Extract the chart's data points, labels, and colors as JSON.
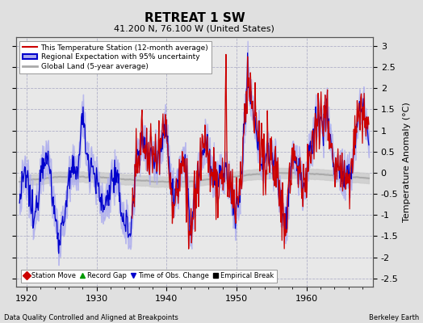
{
  "title": "RETREAT 1 SW",
  "subtitle": "41.200 N, 76.100 W (United States)",
  "ylabel": "Temperature Anomaly (°C)",
  "xlim": [
    1918.5,
    1969.5
  ],
  "ylim": [
    -2.7,
    3.2
  ],
  "yticks": [
    -2.5,
    -2,
    -1.5,
    -1,
    -0.5,
    0,
    0.5,
    1,
    1.5,
    2,
    2.5,
    3
  ],
  "xticks": [
    1920,
    1930,
    1940,
    1950,
    1960
  ],
  "background_color": "#e0e0e0",
  "plot_background": "#e8e8e8",
  "grid_color": "#b0b0c8",
  "station_line_color": "#cc0000",
  "regional_line_color": "#0000cc",
  "regional_fill_color": "#aaaaee",
  "global_line_color": "#aaaaaa",
  "global_fill_color": "#cccccc",
  "footer_left": "Data Quality Controlled and Aligned at Breakpoints",
  "footer_right": "Berkeley Earth",
  "legend_labels": [
    "This Temperature Station (12-month average)",
    "Regional Expectation with 95% uncertainty",
    "Global Land (5-year average)"
  ],
  "marker_labels": [
    "Station Move",
    "Record Gap",
    "Time of Obs. Change",
    "Empirical Break"
  ],
  "marker_colors": [
    "#cc0000",
    "#009900",
    "#0000cc",
    "#000000"
  ],
  "marker_types": [
    "D",
    "^",
    "v",
    "s"
  ]
}
